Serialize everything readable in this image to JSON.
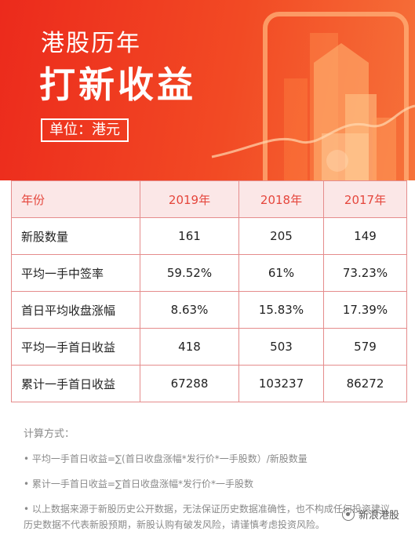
{
  "header": {
    "subtitle": "港股历年",
    "title": "打新收益",
    "unit": "单位：港元"
  },
  "table": {
    "headers": [
      "年份",
      "2019年",
      "2018年",
      "2017年"
    ],
    "rows": [
      [
        "新股数量",
        "161",
        "205",
        "149"
      ],
      [
        "平均一手中签率",
        "59.52%",
        "61%",
        "73.23%"
      ],
      [
        "首日平均收盘涨幅",
        "8.63%",
        "15.83%",
        "17.39%"
      ],
      [
        "平均一手首日收益",
        "418",
        "503",
        "579"
      ],
      [
        "累计一手首日收益",
        "67288",
        "103237",
        "86272"
      ]
    ]
  },
  "notes": {
    "heading": "计算方式：",
    "items": [
      "• 平均一手首日收益=∑(首日收盘涨幅*发行价*一手股数）/新股数量",
      "• 累计一手首日收益=∑首日收盘涨幅*发行价*一手股数",
      "• 以上数据来源于新股历史公开数据，无法保证历史数据准确性，也不构成任何投资建议。历史数据不代表新股预期，新股认购有破发风险，请谨慎考虑投资风险。"
    ]
  },
  "watermark": {
    "text": "新浪港股",
    "icon": "wechat-logo-icon"
  },
  "colors": {
    "header_red": "#ec2a1c",
    "header_orange": "#f6723a",
    "table_border": "#e58c8c",
    "table_header_bg": "#fbe7e7",
    "table_header_text": "#e5463c"
  }
}
